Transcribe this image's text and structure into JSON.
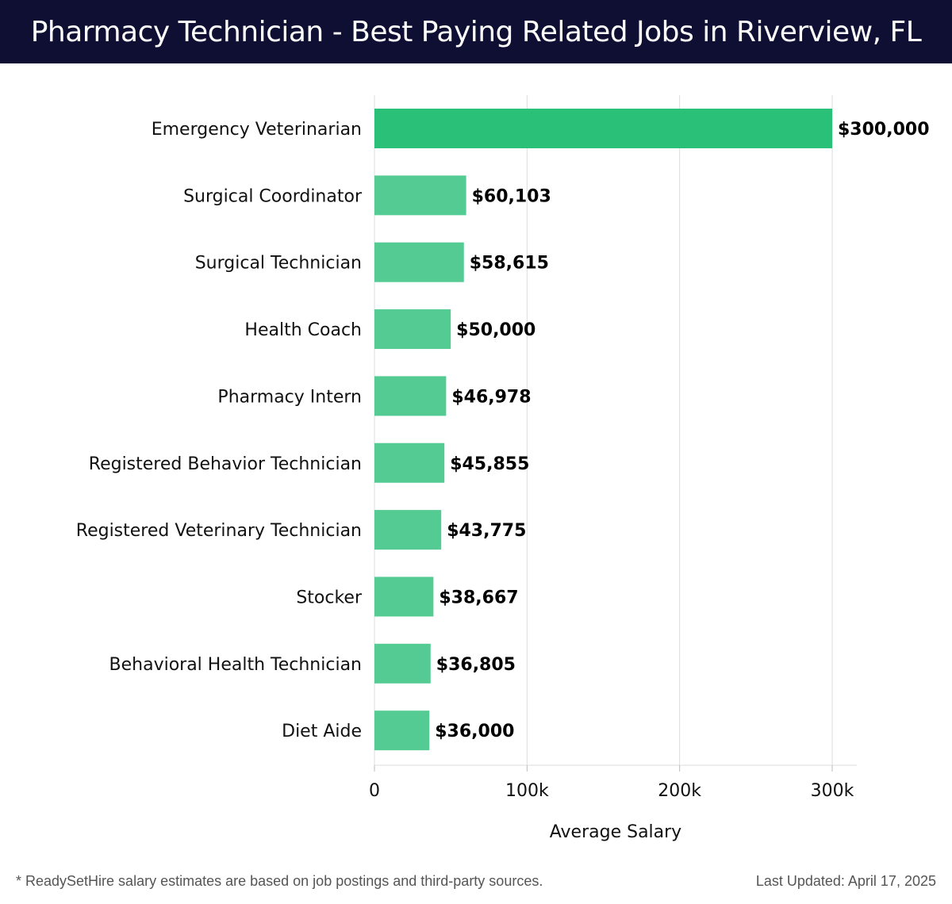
{
  "header": {
    "title": "Pharmacy Technician - Best Paying Related Jobs in Riverview, FL"
  },
  "colors": {
    "header_bg": "#0e0f33",
    "top_bar": "#2ac078",
    "bar": "#54cb93",
    "grid": "#dddddd",
    "text": "#111111"
  },
  "chart_data": {
    "type": "bar",
    "orientation": "horizontal",
    "categories": [
      "Emergency Veterinarian",
      "Surgical Coordinator",
      "Surgical Technician",
      "Health Coach",
      "Pharmacy Intern",
      "Registered Behavior Technician",
      "Registered Veterinary Technician",
      "Stocker",
      "Behavioral Health Technician",
      "Diet Aide"
    ],
    "values": [
      300000,
      60103,
      58615,
      50000,
      46978,
      45855,
      43775,
      38667,
      36805,
      36000
    ],
    "value_labels": [
      "$300,000",
      "$60,103",
      "$58,615",
      "$50,000",
      "$46,978",
      "$45,855",
      "$43,775",
      "$38,667",
      "$36,805",
      "$36,000"
    ],
    "xlabel": "Average Salary",
    "ylabel": "",
    "xlim": [
      0,
      316000
    ],
    "xticks": [
      0,
      100000,
      200000,
      300000
    ],
    "xtick_labels": [
      "0",
      "100k",
      "200k",
      "300k"
    ],
    "grid": "vertical"
  },
  "footer": {
    "note": "* ReadySetHire salary estimates are based on job postings and third-party sources.",
    "updated": "Last Updated: April 17, 2025"
  }
}
